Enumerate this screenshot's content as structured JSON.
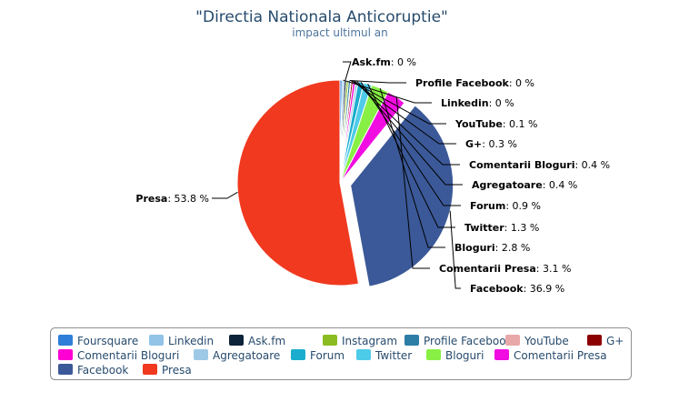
{
  "chart_data": {
    "type": "pie",
    "title": "\"Directia Nationala Anticoruptie\"",
    "subtitle": "impact ultimul an",
    "unit": "%",
    "slices": [
      {
        "name": "Foursquare",
        "value": 0,
        "color": "#2f7ed8",
        "label": null
      },
      {
        "name": "Linkedin",
        "value": 0,
        "color": "#91c4e6",
        "label": "Linkedin: 0 %"
      },
      {
        "name": "Ask.fm",
        "value": 0,
        "color": "#0d233a",
        "label": "Ask.fm: 0 %"
      },
      {
        "name": "Instagram",
        "value": 0,
        "color": "#8bbc21",
        "label": null
      },
      {
        "name": "Profile Facebook",
        "value": 0,
        "color": "#2d7ea6",
        "label": "Profile Facebook: 0 %"
      },
      {
        "name": "YouTube",
        "value": 0.1,
        "color": "#e8a8a8",
        "label": "YouTube: 0.1 %"
      },
      {
        "name": "G+",
        "value": 0.3,
        "color": "#8b0000",
        "label": "G+: 0.3 %"
      },
      {
        "name": "Comentarii Bloguri",
        "value": 0.4,
        "color": "#ff00d4",
        "label": "Comentarii Bloguri: 0.4 %"
      },
      {
        "name": "Agregatoare",
        "value": 0.4,
        "color": "#9ec9e6",
        "label": "Agregatoare: 0.4 %"
      },
      {
        "name": "Forum",
        "value": 0.9,
        "color": "#1aadce",
        "label": "Forum: 0.9 %"
      },
      {
        "name": "Twitter",
        "value": 1.3,
        "color": "#4ecbe8",
        "label": "Twitter: 1.3 %"
      },
      {
        "name": "Bloguri",
        "value": 2.8,
        "color": "#88f044",
        "label": "Bloguri: 2.8 %"
      },
      {
        "name": "Comentarii Presa",
        "value": 3.1,
        "color": "#f10ce1",
        "label": "Comentarii Presa: 3.1 %"
      },
      {
        "name": "Facebook",
        "value": 36.9,
        "color": "#3b5998",
        "label": "Facebook: 36.9 %"
      },
      {
        "name": "Presa",
        "value": 53.8,
        "color": "#f0391f",
        "label": "Presa: 53.8 %"
      }
    ],
    "exploded": "Facebook",
    "legend_position": "bottom"
  }
}
